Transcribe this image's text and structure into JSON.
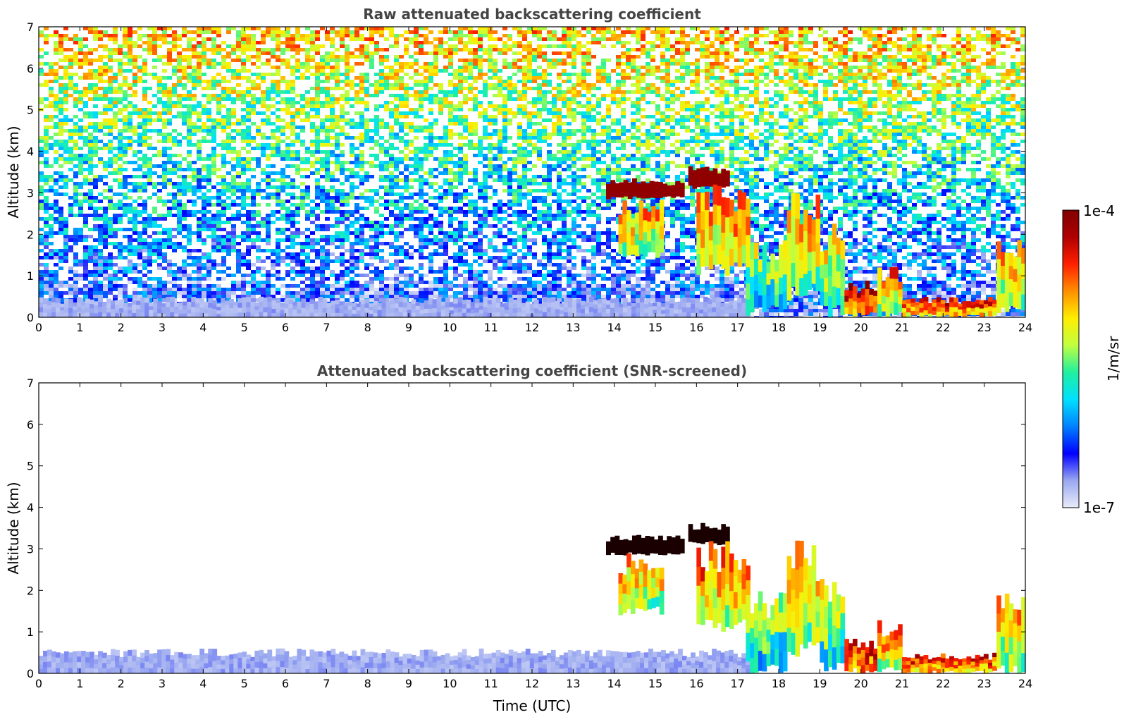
{
  "chart_data": [
    {
      "type": "heatmap",
      "title": "Raw attenuated backscattering coefficient",
      "xlabel": "",
      "ylabel": "Altitude (km)",
      "xlim": [
        0,
        24
      ],
      "ylim": [
        0,
        7
      ],
      "x_ticks": [
        "0",
        "1",
        "2",
        "3",
        "4",
        "5",
        "6",
        "7",
        "8",
        "9",
        "10",
        "11",
        "12",
        "13",
        "14",
        "15",
        "16",
        "17",
        "18",
        "19",
        "20",
        "21",
        "22",
        "23",
        "24"
      ],
      "y_ticks": [
        "0",
        "1",
        "2",
        "3",
        "4",
        "5",
        "6",
        "7"
      ],
      "noise_background": true,
      "features": [
        {
          "kind": "boundary_layer",
          "x": [
            0,
            17.3
          ],
          "y": [
            0,
            0.5
          ],
          "level": 0.08
        },
        {
          "kind": "cloud",
          "x": [
            13.8,
            15.7
          ],
          "y": [
            2.85,
            3.35
          ],
          "level": 0.97
        },
        {
          "kind": "cloud",
          "x": [
            15.8,
            16.8
          ],
          "y": [
            3.1,
            3.65
          ],
          "level": 0.97
        },
        {
          "kind": "precip",
          "x": [
            14.1,
            15.2
          ],
          "y": [
            1.4,
            2.9
          ],
          "level": 0.7
        },
        {
          "kind": "precip",
          "x": [
            16.0,
            17.3
          ],
          "y": [
            1.0,
            3.2
          ],
          "level": 0.75
        },
        {
          "kind": "precip",
          "x": [
            17.2,
            18.2
          ],
          "y": [
            0.0,
            2.0
          ],
          "level": 0.55
        },
        {
          "kind": "precip",
          "x": [
            18.2,
            19.0
          ],
          "y": [
            0.4,
            3.2
          ],
          "level": 0.7
        },
        {
          "kind": "precip",
          "x": [
            19.0,
            19.6
          ],
          "y": [
            0.0,
            2.3
          ],
          "level": 0.6
        },
        {
          "kind": "low_cloud",
          "x": [
            19.6,
            20.4
          ],
          "y": [
            0.0,
            0.9
          ],
          "level": 0.9
        },
        {
          "kind": "low_cloud",
          "x": [
            20.4,
            21.0
          ],
          "y": [
            0.0,
            1.3
          ],
          "level": 0.75
        },
        {
          "kind": "low_cloud",
          "x": [
            21.0,
            23.3
          ],
          "y": [
            0.0,
            0.5
          ],
          "level": 0.85
        },
        {
          "kind": "low_cloud",
          "x": [
            23.3,
            24.0
          ],
          "y": [
            0.0,
            2.0
          ],
          "level": 0.7
        }
      ]
    },
    {
      "type": "heatmap",
      "title": "Attenuated backscattering coefficient (SNR-screened)",
      "xlabel": "Time (UTC)",
      "ylabel": "Altitude (km)",
      "xlim": [
        0,
        24
      ],
      "ylim": [
        0,
        7
      ],
      "x_ticks": [
        "0",
        "1",
        "2",
        "3",
        "4",
        "5",
        "6",
        "7",
        "8",
        "9",
        "10",
        "11",
        "12",
        "13",
        "14",
        "15",
        "16",
        "17",
        "18",
        "19",
        "20",
        "21",
        "22",
        "23",
        "24"
      ],
      "y_ticks": [
        "0",
        "1",
        "2",
        "3",
        "4",
        "5",
        "6",
        "7"
      ],
      "noise_background": false,
      "features": [
        {
          "kind": "boundary_layer",
          "x": [
            0,
            17.3
          ],
          "y": [
            0,
            0.6
          ],
          "level": 0.08
        },
        {
          "kind": "cloud",
          "x": [
            13.8,
            15.7
          ],
          "y": [
            2.85,
            3.35
          ],
          "level": 1.0
        },
        {
          "kind": "cloud",
          "x": [
            15.8,
            16.8
          ],
          "y": [
            3.1,
            3.65
          ],
          "level": 1.0
        },
        {
          "kind": "precip",
          "x": [
            14.1,
            15.2
          ],
          "y": [
            1.4,
            2.9
          ],
          "level": 0.7
        },
        {
          "kind": "precip",
          "x": [
            16.0,
            17.3
          ],
          "y": [
            1.0,
            3.2
          ],
          "level": 0.75
        },
        {
          "kind": "precip",
          "x": [
            17.2,
            18.2
          ],
          "y": [
            0.0,
            2.0
          ],
          "level": 0.55
        },
        {
          "kind": "precip",
          "x": [
            18.2,
            19.0
          ],
          "y": [
            0.4,
            3.2
          ],
          "level": 0.7
        },
        {
          "kind": "precip",
          "x": [
            19.0,
            19.6
          ],
          "y": [
            0.0,
            2.3
          ],
          "level": 0.6
        },
        {
          "kind": "low_cloud",
          "x": [
            19.6,
            20.4
          ],
          "y": [
            0.0,
            0.9
          ],
          "level": 0.9
        },
        {
          "kind": "low_cloud",
          "x": [
            20.4,
            21.0
          ],
          "y": [
            0.0,
            1.3
          ],
          "level": 0.75
        },
        {
          "kind": "low_cloud",
          "x": [
            21.0,
            23.3
          ],
          "y": [
            0.0,
            0.5
          ],
          "level": 0.85
        },
        {
          "kind": "low_cloud",
          "x": [
            23.3,
            24.0
          ],
          "y": [
            0.0,
            2.0
          ],
          "level": 0.7
        }
      ]
    }
  ],
  "colorbar": {
    "min_label": "1e-7",
    "max_label": "1e-4",
    "label": "1/m/sr",
    "colormap": "jet",
    "colors": [
      "#e8ecf8",
      "#9aa8f0",
      "#0000ff",
      "#0080ff",
      "#00e0ff",
      "#20f0a0",
      "#c0ff40",
      "#ffee00",
      "#ff9000",
      "#ff2000",
      "#b00000",
      "#800000"
    ]
  }
}
